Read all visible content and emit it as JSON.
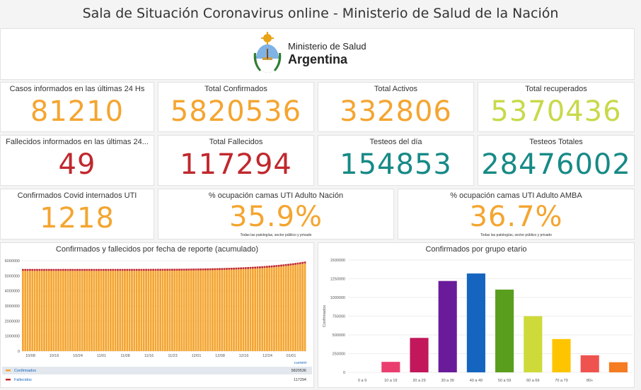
{
  "page_title": "Sala de Situación Coronavirus online - Ministerio de Salud de la Nación",
  "logo": {
    "line1": "Ministerio de Salud",
    "line2": "Argentina"
  },
  "kpis": [
    {
      "label": "Casos informados en las últimas 24 Hs",
      "value": "81210",
      "color": "#f4a530"
    },
    {
      "label": "Total Confirmados",
      "value": "5820536",
      "color": "#f4a530"
    },
    {
      "label": "Total Activos",
      "value": "332806",
      "color": "#f4a530"
    },
    {
      "label": "Total recuperados",
      "value": "5370436",
      "color": "#c8d94a"
    },
    {
      "label": "Fallecidos informados en las últimas 24...",
      "value": "49",
      "color": "#c0282d"
    },
    {
      "label": "Total Fallecidos",
      "value": "117294",
      "color": "#c0282d"
    },
    {
      "label": "Testeos del día",
      "value": "154853",
      "color": "#178a86"
    },
    {
      "label": "Testeos Totales",
      "value": "28476002",
      "color": "#178a86"
    },
    {
      "label": "Confirmados Covid internados UTI",
      "value": "1218",
      "color": "#f4a530"
    },
    {
      "label": "% ocupación camas UTI Adulto Nación",
      "value": "35.9%",
      "color": "#f4a530",
      "note": "Todas las patologías, sector público y privado"
    },
    {
      "label": "% ocupación camas UTI Adulto AMBA",
      "value": "36.7%",
      "color": "#f4a530",
      "note": "Todas las patologías, sector público y privado"
    }
  ],
  "chart_data": [
    {
      "type": "bar",
      "title": "Confirmados y fallecidos por fecha de reporte (acumulado)",
      "y_ticks": [
        "0",
        "1000000",
        "2000000",
        "3000000",
        "4000000",
        "5000000",
        "6000000"
      ],
      "ylim": [
        0,
        6000000
      ],
      "x_tick_labels": [
        "10/08",
        "10/16",
        "10/24",
        "11/01",
        "11/08",
        "11/16",
        "11/23",
        "12/01",
        "12/08",
        "12/16",
        "12/24",
        "01/01"
      ],
      "confirmados_start": 5330000,
      "confirmados_end": 5820536,
      "fallecidos_value": 117294,
      "current_label": "current",
      "legend": [
        {
          "name": "Confirmados",
          "value": "5820536",
          "color": "#f4a530"
        },
        {
          "name": "Fallecidos",
          "value": "117294",
          "color": "#c0282d"
        }
      ]
    },
    {
      "type": "bar",
      "title": "Confirmados por grupo etario",
      "ylabel": "Confirmados",
      "y_ticks": [
        "0",
        "250000",
        "500000",
        "750000",
        "1000000",
        "1250000",
        "1500000"
      ],
      "ylim": [
        0,
        1500000
      ],
      "categories": [
        "0 a 9",
        "10 a 19",
        "20 a 29",
        "30 a 39",
        "40 a 49",
        "50 a 59",
        "60 a 69",
        "70 a 79",
        "80+",
        ""
      ],
      "values": [
        0,
        140000,
        460000,
        1220000,
        1320000,
        1105000,
        750000,
        445000,
        228000,
        135000
      ],
      "colors": [
        "#ea3f6e",
        "#ea3f6e",
        "#c2185b",
        "#6a1b9a",
        "#1565c0",
        "#5a9e1e",
        "#cdda3a",
        "#ffc400",
        "#ef5350",
        "#f57c20"
      ]
    }
  ]
}
